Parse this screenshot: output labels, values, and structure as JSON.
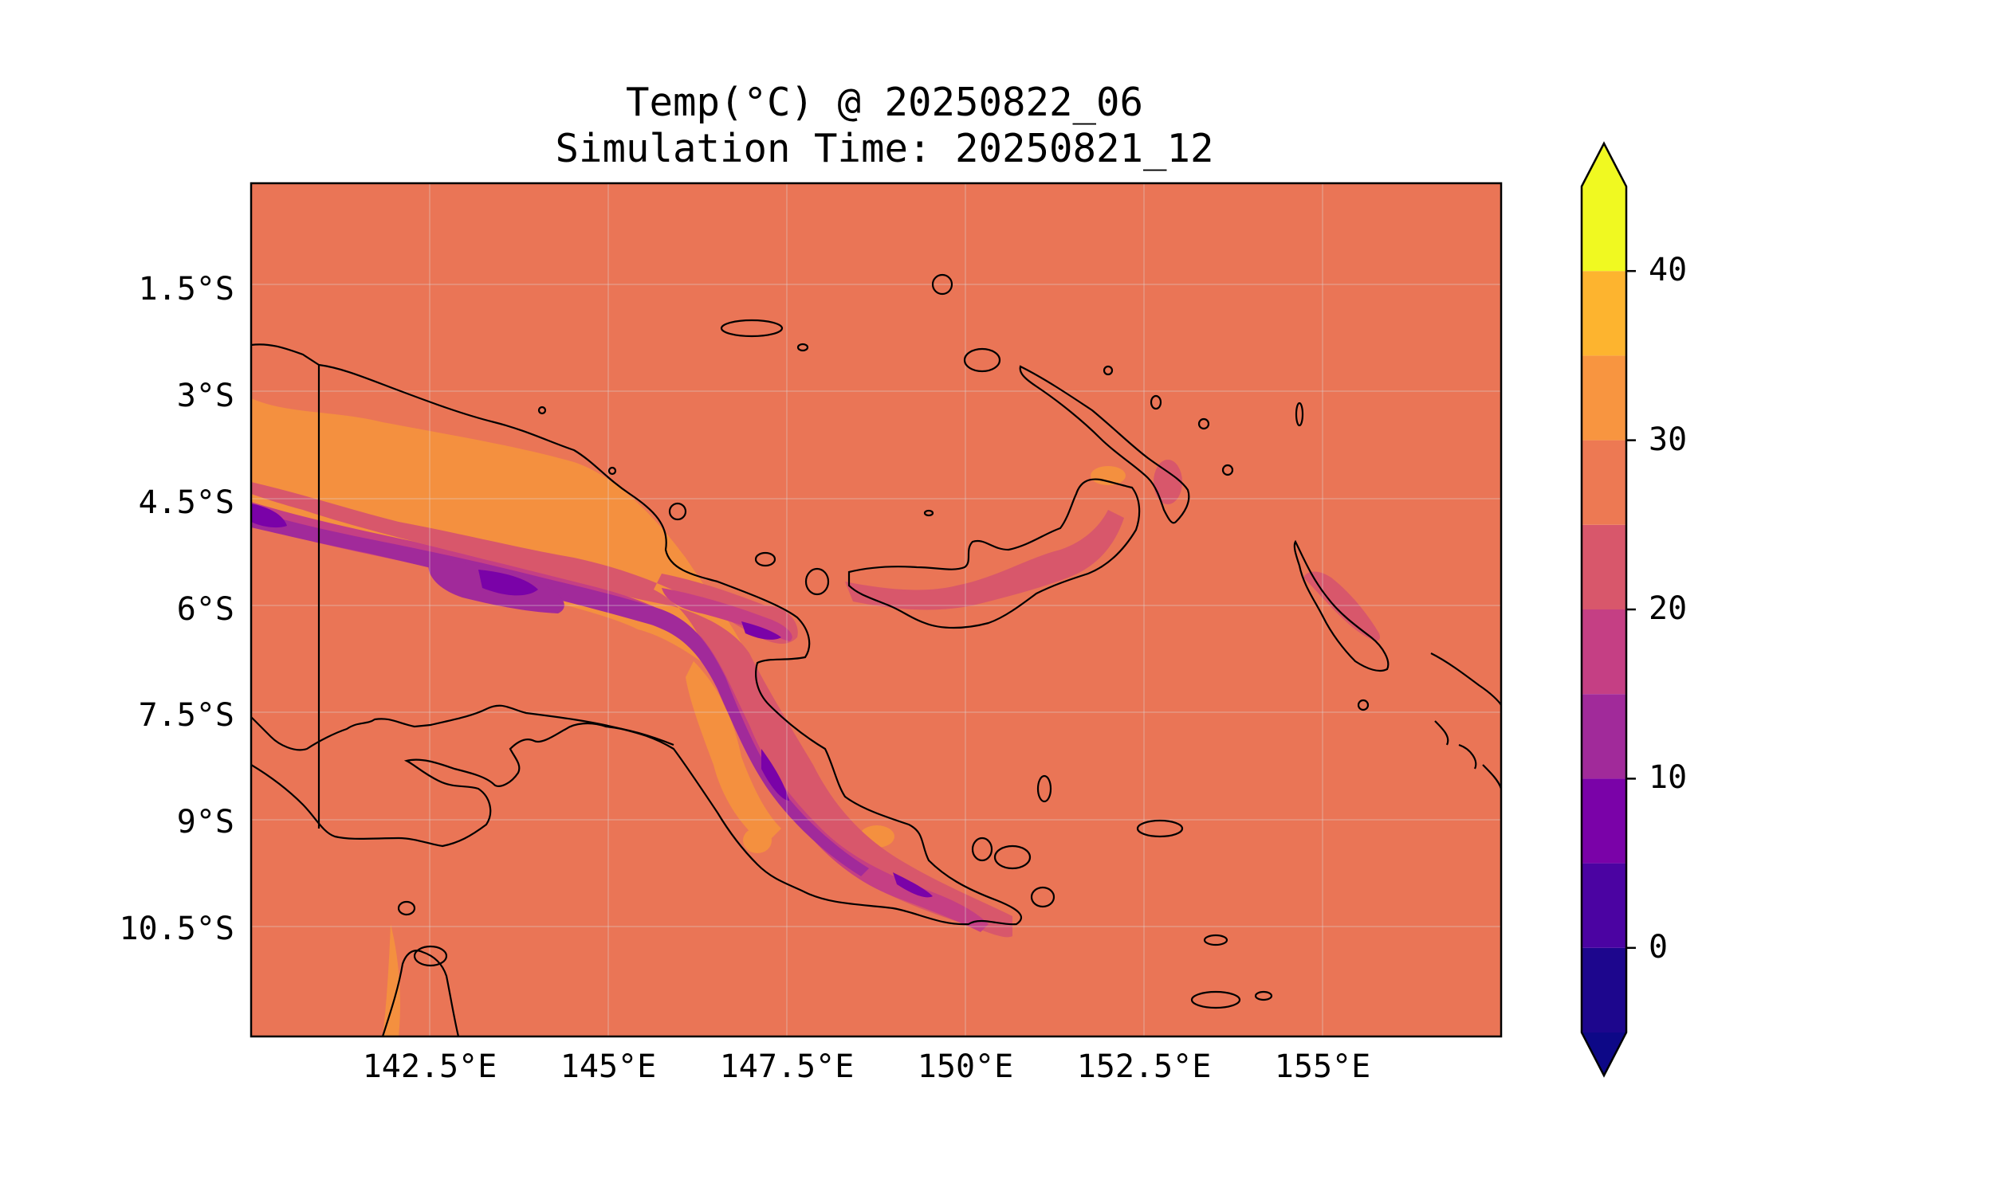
{
  "title": "Temp(°C) @ 20250822_06",
  "subtitle": "Simulation Time: 20250821_12",
  "map": {
    "lat_ticks": [
      "1.5°S",
      "3°S",
      "4.5°S",
      "6°S",
      "7.5°S",
      "9°S",
      "10.5°S"
    ],
    "lon_ticks": [
      "142.5°E",
      "145°E",
      "147.5°E",
      "150°E",
      "152.5°E",
      "155°E"
    ],
    "extent": {
      "lon": [
        140,
        157.5
      ],
      "lat": [
        -12,
        0
      ]
    },
    "background_value_band": "25-30",
    "gridlines": true
  },
  "colorbar": {
    "tick_labels": [
      "0",
      "10",
      "20",
      "30",
      "40"
    ],
    "levels": [
      -5,
      0,
      5,
      10,
      15,
      20,
      25,
      30,
      35,
      40,
      45
    ],
    "colors": [
      "#1d068d",
      "#4b03a2",
      "#7a02a8",
      "#a12a9a",
      "#c53f84",
      "#d8576b",
      "#ed7953",
      "#f89540",
      "#fdb42f",
      "#f0f921"
    ],
    "under_color": "#0d0887",
    "over_color": "#f0f921",
    "extend": "both"
  },
  "colors": {
    "land_outline": "#000000",
    "frame": "#000000"
  }
}
